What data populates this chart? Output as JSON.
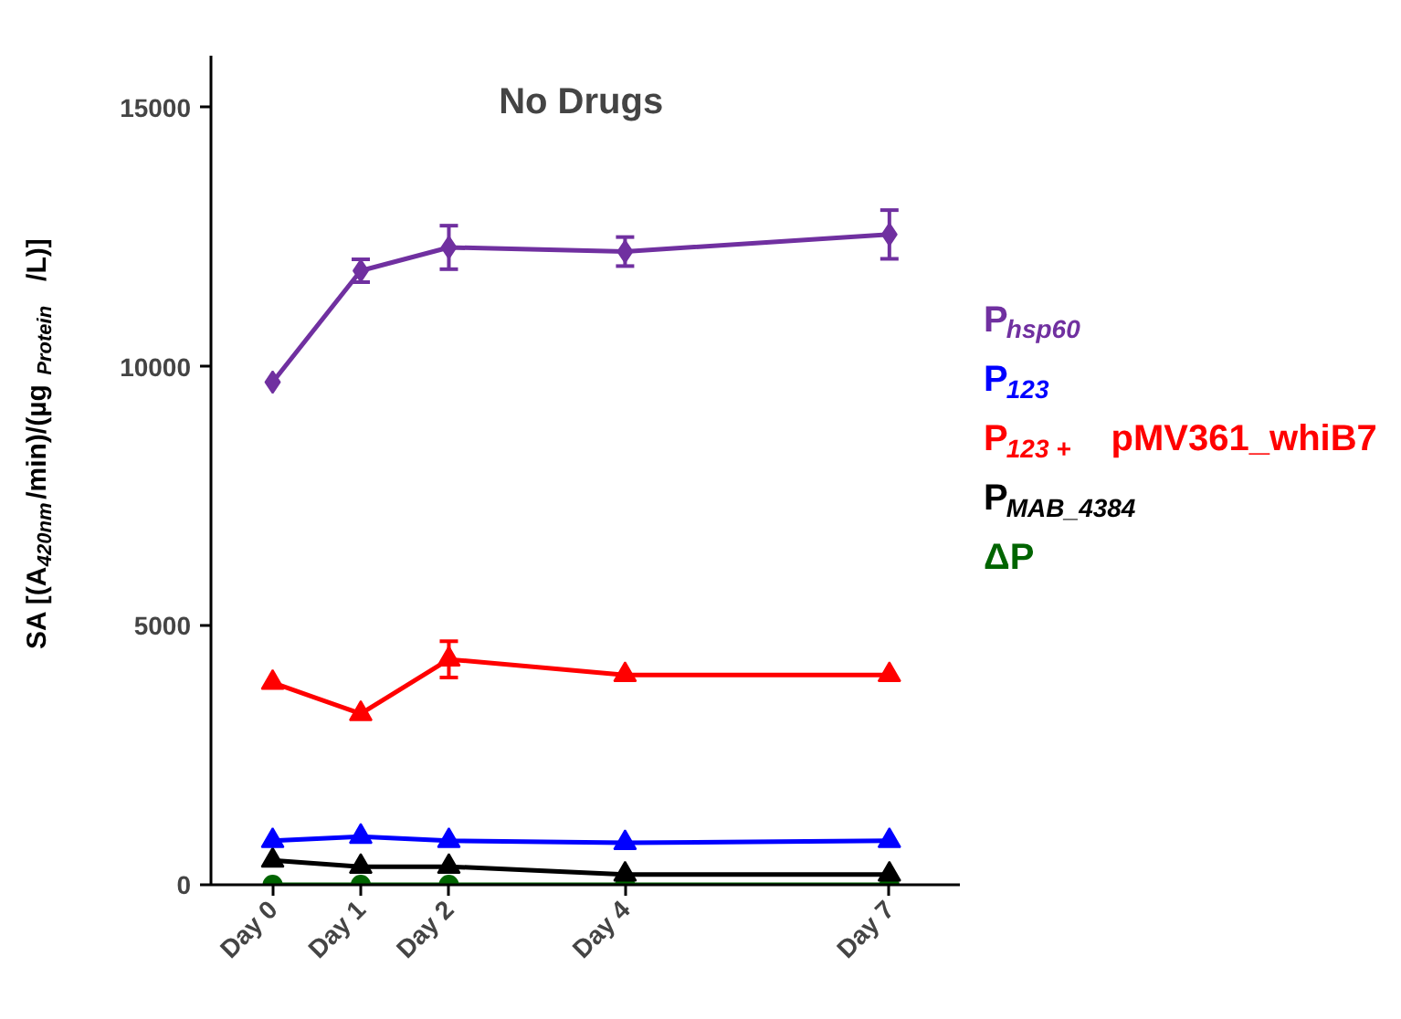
{
  "chart_data": {
    "type": "line",
    "title": "No Drugs",
    "ylabel": "SA [(A$_{420nm}$/min)/(µg$_{Protein}$/L)]",
    "categories": [
      "Day 0",
      "Day 1",
      "Day 2",
      null,
      "Day 4",
      null,
      null,
      "Day 7"
    ],
    "ylim": [
      0,
      16000
    ],
    "yticks": [
      0,
      5000,
      10000,
      15000
    ],
    "grid": false,
    "legend": "right",
    "series": [
      {
        "name": "P$_{hsp60}$",
        "color": "#7030a0",
        "marker": "diamond",
        "values": [
          9700,
          11850,
          12300,
          null,
          12220,
          null,
          null,
          12550
        ],
        "errors": [
          null,
          220,
          420,
          null,
          280,
          null,
          null,
          470
        ]
      },
      {
        "name": "P$_{123}$",
        "color": "#0000ff",
        "marker": "triangle",
        "values": [
          850,
          930,
          850,
          null,
          810,
          null,
          null,
          850
        ]
      },
      {
        "name": "P$_{123 +}$ pMV361_whiB7",
        "color": "#ff0000",
        "marker": "triangle",
        "values": [
          3900,
          3300,
          4350,
          null,
          4050,
          null,
          null,
          4050
        ],
        "errors": [
          null,
          null,
          350,
          null,
          null,
          null,
          null,
          null
        ]
      },
      {
        "name": "P$_{MAB_4384}$",
        "color": "#000000",
        "marker": "triangle",
        "values": [
          470,
          350,
          350,
          null,
          200,
          null,
          null,
          200
        ]
      },
      {
        "name": "ΔP",
        "color": "#006400",
        "marker": "circle",
        "values": [
          0,
          0,
          0,
          null,
          0,
          null,
          null,
          0
        ]
      }
    ]
  }
}
